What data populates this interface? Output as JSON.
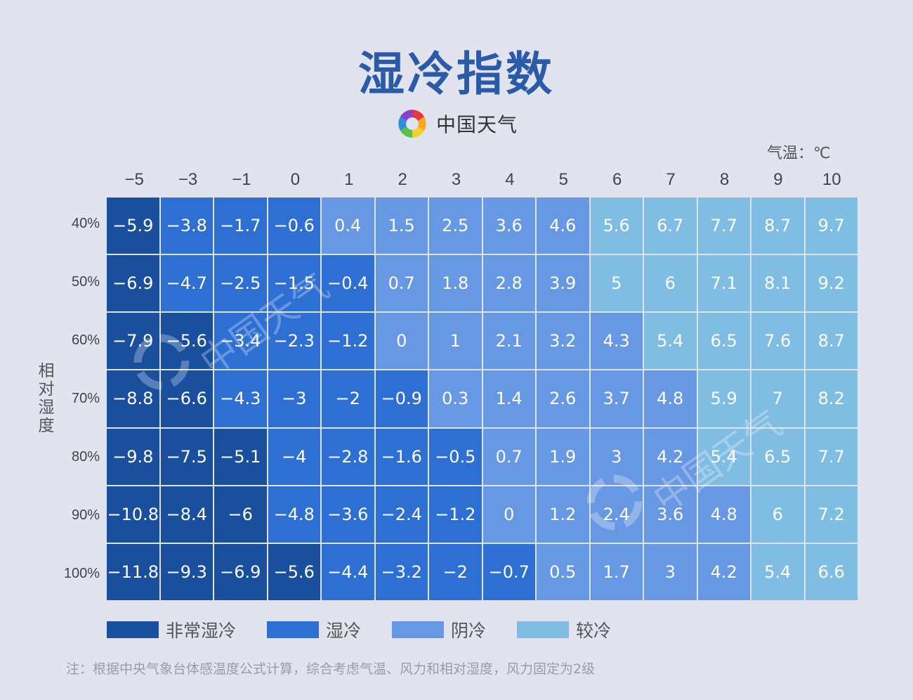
{
  "title": "湿冷指数",
  "brand": {
    "name": "中国天气",
    "logo_icon": "china-weather-swirl-logo"
  },
  "unit_label": "气温：℃",
  "y_axis_title": "相对湿度",
  "legend": [
    {
      "label": "非常湿冷",
      "color": "#1a4f9e"
    },
    {
      "label": "湿冷",
      "color": "#2e6fd3"
    },
    {
      "label": "阴冷",
      "color": "#6698e3"
    },
    {
      "label": "较冷",
      "color": "#7fbde3"
    }
  ],
  "note": "注：根据中央气象台体感温度公式计算，综合考虑气温、风力和相对湿度，风力固定为2级",
  "watermark_text": "中国天气",
  "chart_data": {
    "type": "heatmap",
    "title": "湿冷指数",
    "xlabel": "气温：℃",
    "ylabel": "相对湿度",
    "x": [
      "-5",
      "-3",
      "-1",
      "0",
      "1",
      "2",
      "3",
      "4",
      "5",
      "6",
      "7",
      "8",
      "9",
      "10"
    ],
    "y": [
      "40%",
      "50%",
      "60%",
      "70%",
      "80%",
      "90%",
      "100%"
    ],
    "values": [
      [
        -5.9,
        -3.8,
        -1.7,
        -0.6,
        0.4,
        1.5,
        2.5,
        3.6,
        4.6,
        5.6,
        6.7,
        7.7,
        8.7,
        9.7
      ],
      [
        -6.9,
        -4.7,
        -2.5,
        -1.5,
        -0.4,
        0.7,
        1.8,
        2.8,
        3.9,
        5,
        6,
        7.1,
        8.1,
        9.2
      ],
      [
        -7.9,
        -5.6,
        -3.4,
        -2.3,
        -1.2,
        0,
        1,
        2.1,
        3.2,
        4.3,
        5.4,
        6.5,
        7.6,
        8.7
      ],
      [
        -8.8,
        -6.6,
        -4.3,
        -3,
        -2,
        -0.9,
        0.3,
        1.4,
        2.6,
        3.7,
        4.8,
        5.9,
        7,
        8.2
      ],
      [
        -9.8,
        -7.5,
        -5.1,
        -4,
        -2.8,
        -1.6,
        -0.5,
        0.7,
        1.9,
        3,
        4.2,
        5.4,
        6.5,
        7.7
      ],
      [
        -10.8,
        -8.4,
        -6,
        -4.8,
        -3.6,
        -2.4,
        -1.2,
        0,
        1.2,
        2.4,
        3.6,
        4.8,
        6,
        7.2
      ],
      [
        -11.8,
        -9.3,
        -6.9,
        -5.6,
        -4.4,
        -3.2,
        -2,
        -0.7,
        0.5,
        1.7,
        3,
        4.2,
        5.4,
        6.6
      ]
    ],
    "categories": [
      {
        "label": "非常湿冷",
        "color": "#1a4f9e",
        "range": "< -5"
      },
      {
        "label": "湿冷",
        "color": "#2e6fd3",
        "range": "-5 ~ 0"
      },
      {
        "label": "阴冷",
        "color": "#6698e3",
        "range": "0 ~ 5"
      },
      {
        "label": "较冷",
        "color": "#7fbde3",
        "range": ">= 5"
      }
    ],
    "legend_position": "bottom"
  }
}
